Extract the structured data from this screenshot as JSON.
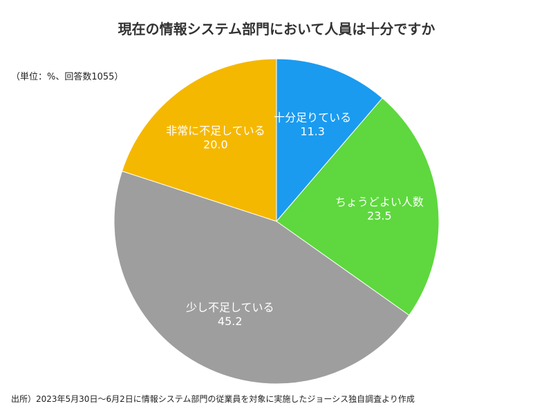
{
  "title": "現在の情報システム部門において人員は十分ですか",
  "unit_note": "（単位：%、回答数1055）",
  "source_note": "出所）2023年5月30日〜6月2日に情報システム部門の従業員を対象に実施したジョーシス独自調査より作成",
  "chart_data": {
    "type": "pie",
    "title": "現在の情報システム部門において人員は十分ですか",
    "start": "12 o'clock",
    "direction": "clockwise",
    "slices": [
      {
        "label": "十分足りている",
        "value": 11.3,
        "value_label": "11.3",
        "color": "#1a9bf0"
      },
      {
        "label": "ちょうどよい人数",
        "value": 23.5,
        "value_label": "23.5",
        "color": "#5ed83e"
      },
      {
        "label": "少し不足している",
        "value": 45.2,
        "value_label": "45.2",
        "color": "#9e9e9e"
      },
      {
        "label": "非常に不足している",
        "value": 20.0,
        "value_label": "20.0",
        "color": "#f5b800"
      }
    ]
  }
}
